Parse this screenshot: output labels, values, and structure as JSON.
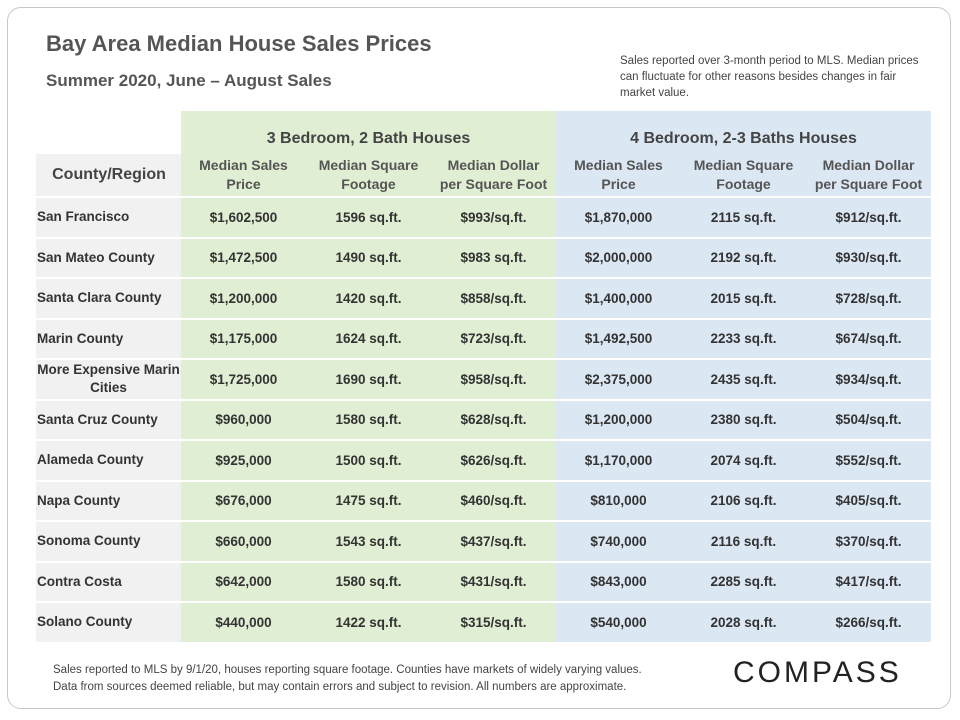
{
  "title": "Bay Area Median House Sales Prices",
  "subtitle": "Summer 2020, June – August Sales",
  "note": "Sales reported over 3-month period to MLS. Median prices can fluctuate for other reasons besides changes in fair market value.",
  "footer_line1": "Sales reported to MLS by 9/1/20, houses reporting square footage. Counties have markets of widely varying values.",
  "footer_line2": "Data from sources deemed reliable, but may contain errors and subject to revision.  All numbers are approximate.",
  "logo": "COMPASS",
  "colors": {
    "green": "#e0eed3",
    "blue": "#dbe7f3",
    "gray": "#f1f1f1"
  },
  "chart_data": {
    "type": "table",
    "title": "Bay Area Median House Sales Prices",
    "group_headers": [
      "3 Bedroom, 2 Bath Houses",
      "4 Bedroom, 2-3 Baths Houses"
    ],
    "row_header_label": "County/Region",
    "columns": [
      [
        "Median Sales",
        "Price"
      ],
      [
        "Median Square",
        "Footage"
      ],
      [
        "Median Dollar",
        "per Square Foot"
      ],
      [
        "Median Sales",
        "Price"
      ],
      [
        "Median Square",
        "Footage"
      ],
      [
        "Median Dollar",
        "per Square Foot"
      ]
    ],
    "rows": [
      {
        "region": "San Francisco",
        "values": [
          "$1,602,500",
          "1596 sq.ft.",
          "$993/sq.ft.",
          "$1,870,000",
          "2115 sq.ft.",
          "$912/sq.ft."
        ]
      },
      {
        "region": "San Mateo County",
        "values": [
          "$1,472,500",
          "1490 sq.ft.",
          "$983 sq.ft.",
          "$2,000,000",
          "2192 sq.ft.",
          "$930/sq.ft."
        ]
      },
      {
        "region": "Santa Clara County",
        "values": [
          "$1,200,000",
          "1420 sq.ft.",
          "$858/sq.ft.",
          "$1,400,000",
          "2015 sq.ft.",
          "$728/sq.ft."
        ]
      },
      {
        "region": "Marin County",
        "values": [
          "$1,175,000",
          "1624 sq.ft.",
          "$723/sq.ft.",
          "$1,492,500",
          "2233 sq.ft.",
          "$674/sq.ft."
        ]
      },
      {
        "region": "More Expensive Marin Cities",
        "values": [
          "$1,725,000",
          "1690 sq.ft.",
          "$958/sq.ft.",
          "$2,375,000",
          "2435 sq.ft.",
          "$934/sq.ft."
        ]
      },
      {
        "region": "Santa Cruz County",
        "values": [
          "$960,000",
          "1580 sq.ft.",
          "$628/sq.ft.",
          "$1,200,000",
          "2380 sq.ft.",
          "$504/sq.ft."
        ]
      },
      {
        "region": "Alameda County",
        "values": [
          "$925,000",
          "1500 sq.ft.",
          "$626/sq.ft.",
          "$1,170,000",
          "2074 sq.ft.",
          "$552/sq.ft."
        ]
      },
      {
        "region": "Napa County",
        "values": [
          "$676,000",
          "1475 sq.ft.",
          "$460/sq.ft.",
          "$810,000",
          "2106 sq.ft.",
          "$405/sq.ft."
        ]
      },
      {
        "region": "Sonoma County",
        "values": [
          "$660,000",
          "1543 sq.ft.",
          "$437/sq.ft.",
          "$740,000",
          "2116 sq.ft.",
          "$370/sq.ft."
        ]
      },
      {
        "region": "Contra Costa",
        "values": [
          "$642,000",
          "1580 sq.ft.",
          "$431/sq.ft.",
          "$843,000",
          "2285 sq.ft.",
          "$417/sq.ft."
        ]
      },
      {
        "region": "Solano County",
        "values": [
          "$440,000",
          "1422 sq.ft.",
          "$315/sq.ft.",
          "$540,000",
          "2028 sq.ft.",
          "$266/sq.ft."
        ]
      }
    ]
  }
}
